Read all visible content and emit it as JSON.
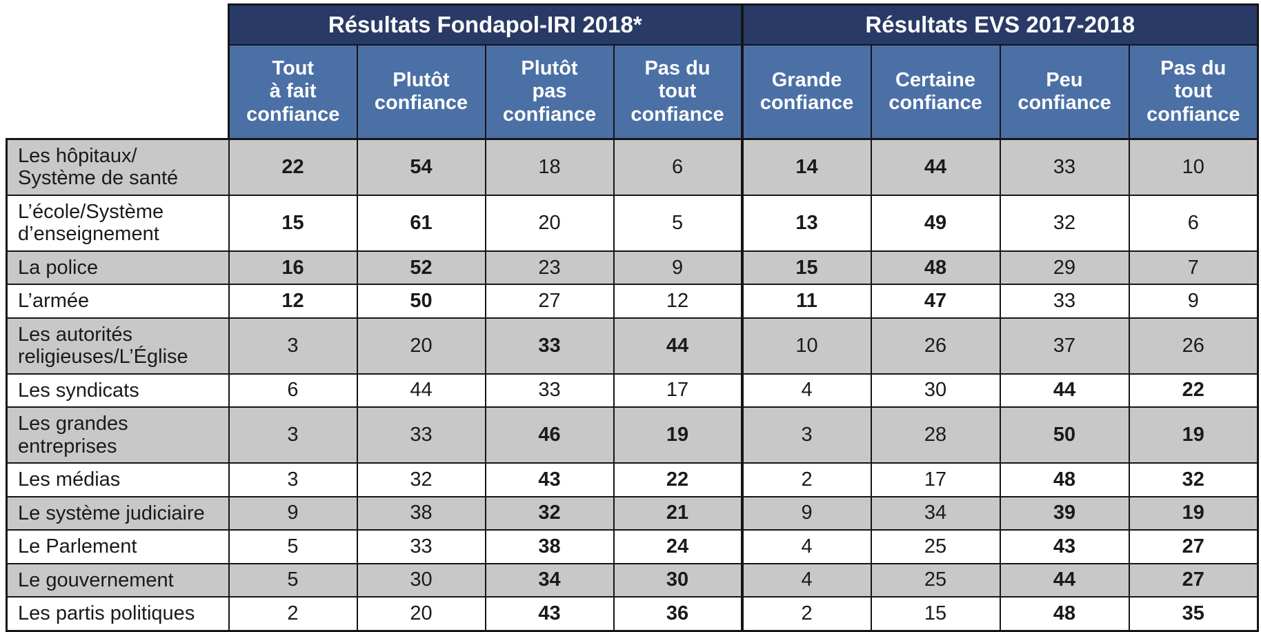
{
  "colors": {
    "header_navy": "#293A66",
    "header_blue": "#4B70A6",
    "row_gray": "#C8C8C8",
    "row_white": "#FFFFFF",
    "border_black": "#151515",
    "header_text": "#FFFFFF",
    "body_text": "#1A1A1A"
  },
  "chart_data": {
    "type": "table",
    "title": "",
    "legend_position": "none",
    "groups": [
      {
        "title": "Résultats Fondapol-IRI 2018*",
        "columns": [
          "Tout\nà fait\nconfiance",
          "Plutôt\nconfiance",
          "Plutôt\npas\nconfiance",
          "Pas du\ntout\nconfiance"
        ]
      },
      {
        "title": "Résultats EVS 2017-2018",
        "columns": [
          "Grande\nconfiance",
          "Certaine\nconfiance",
          "Peu\nconfiance",
          "Pas du\ntout\nconfiance"
        ]
      }
    ],
    "rows": [
      {
        "label": "Les hôpitaux/\nSystème de santé",
        "fondapol": [
          {
            "v": "22",
            "bold": true
          },
          {
            "v": "54",
            "bold": true
          },
          {
            "v": "18",
            "bold": false
          },
          {
            "v": "6",
            "bold": false
          }
        ],
        "evs": [
          {
            "v": "14",
            "bold": true
          },
          {
            "v": "44",
            "bold": true
          },
          {
            "v": "33",
            "bold": false
          },
          {
            "v": "10",
            "bold": false
          }
        ]
      },
      {
        "label": "L’école/Système\nd’enseignement",
        "fondapol": [
          {
            "v": "15",
            "bold": true
          },
          {
            "v": "61",
            "bold": true
          },
          {
            "v": "20",
            "bold": false
          },
          {
            "v": "5",
            "bold": false
          }
        ],
        "evs": [
          {
            "v": "13",
            "bold": true
          },
          {
            "v": "49",
            "bold": true
          },
          {
            "v": "32",
            "bold": false
          },
          {
            "v": "6",
            "bold": false
          }
        ]
      },
      {
        "label": "La police",
        "fondapol": [
          {
            "v": "16",
            "bold": true
          },
          {
            "v": "52",
            "bold": true
          },
          {
            "v": "23",
            "bold": false
          },
          {
            "v": "9",
            "bold": false
          }
        ],
        "evs": [
          {
            "v": "15",
            "bold": true
          },
          {
            "v": "48",
            "bold": true
          },
          {
            "v": "29",
            "bold": false
          },
          {
            "v": "7",
            "bold": false
          }
        ]
      },
      {
        "label": "L’armée",
        "fondapol": [
          {
            "v": "12",
            "bold": true
          },
          {
            "v": "50",
            "bold": true
          },
          {
            "v": "27",
            "bold": false
          },
          {
            "v": "12",
            "bold": false
          }
        ],
        "evs": [
          {
            "v": "11",
            "bold": true
          },
          {
            "v": "47",
            "bold": true
          },
          {
            "v": "33",
            "bold": false
          },
          {
            "v": "9",
            "bold": false
          }
        ]
      },
      {
        "label": "Les autorités\nreligieuses/L’Église",
        "fondapol": [
          {
            "v": "3",
            "bold": false
          },
          {
            "v": "20",
            "bold": false
          },
          {
            "v": "33",
            "bold": true
          },
          {
            "v": "44",
            "bold": true
          }
        ],
        "evs": [
          {
            "v": "10",
            "bold": false
          },
          {
            "v": "26",
            "bold": false
          },
          {
            "v": "37",
            "bold": false
          },
          {
            "v": "26",
            "bold": false
          }
        ]
      },
      {
        "label": "Les syndicats",
        "fondapol": [
          {
            "v": "6",
            "bold": false
          },
          {
            "v": "44",
            "bold": false
          },
          {
            "v": "33",
            "bold": false
          },
          {
            "v": "17",
            "bold": false
          }
        ],
        "evs": [
          {
            "v": "4",
            "bold": false
          },
          {
            "v": "30",
            "bold": false
          },
          {
            "v": "44",
            "bold": true
          },
          {
            "v": "22",
            "bold": true
          }
        ]
      },
      {
        "label": "Les grandes\nentreprises",
        "fondapol": [
          {
            "v": "3",
            "bold": false
          },
          {
            "v": "33",
            "bold": false
          },
          {
            "v": "46",
            "bold": true
          },
          {
            "v": "19",
            "bold": true
          }
        ],
        "evs": [
          {
            "v": "3",
            "bold": false
          },
          {
            "v": "28",
            "bold": false
          },
          {
            "v": "50",
            "bold": true
          },
          {
            "v": "19",
            "bold": true
          }
        ]
      },
      {
        "label": "Les médias",
        "fondapol": [
          {
            "v": "3",
            "bold": false
          },
          {
            "v": "32",
            "bold": false
          },
          {
            "v": "43",
            "bold": true
          },
          {
            "v": "22",
            "bold": true
          }
        ],
        "evs": [
          {
            "v": "2",
            "bold": false
          },
          {
            "v": "17",
            "bold": false
          },
          {
            "v": "48",
            "bold": true
          },
          {
            "v": "32",
            "bold": true
          }
        ]
      },
      {
        "label": "Le système judiciaire",
        "fondapol": [
          {
            "v": "9",
            "bold": false
          },
          {
            "v": "38",
            "bold": false
          },
          {
            "v": "32",
            "bold": true
          },
          {
            "v": "21",
            "bold": true
          }
        ],
        "evs": [
          {
            "v": "9",
            "bold": false
          },
          {
            "v": "34",
            "bold": false
          },
          {
            "v": "39",
            "bold": true
          },
          {
            "v": "19",
            "bold": true
          }
        ]
      },
      {
        "label": "Le Parlement",
        "fondapol": [
          {
            "v": "5",
            "bold": false
          },
          {
            "v": "33",
            "bold": false
          },
          {
            "v": "38",
            "bold": true
          },
          {
            "v": "24",
            "bold": true
          }
        ],
        "evs": [
          {
            "v": "4",
            "bold": false
          },
          {
            "v": "25",
            "bold": false
          },
          {
            "v": "43",
            "bold": true
          },
          {
            "v": "27",
            "bold": true
          }
        ]
      },
      {
        "label": "Le gouvernement",
        "fondapol": [
          {
            "v": "5",
            "bold": false
          },
          {
            "v": "30",
            "bold": false
          },
          {
            "v": "34",
            "bold": true
          },
          {
            "v": "30",
            "bold": true
          }
        ],
        "evs": [
          {
            "v": "4",
            "bold": false
          },
          {
            "v": "25",
            "bold": false
          },
          {
            "v": "44",
            "bold": true
          },
          {
            "v": "27",
            "bold": true
          }
        ]
      },
      {
        "label": "Les partis politiques",
        "fondapol": [
          {
            "v": "2",
            "bold": false
          },
          {
            "v": "20",
            "bold": false
          },
          {
            "v": "43",
            "bold": true
          },
          {
            "v": "36",
            "bold": true
          }
        ],
        "evs": [
          {
            "v": "2",
            "bold": false
          },
          {
            "v": "15",
            "bold": false
          },
          {
            "v": "48",
            "bold": true
          },
          {
            "v": "35",
            "bold": true
          }
        ]
      }
    ]
  }
}
